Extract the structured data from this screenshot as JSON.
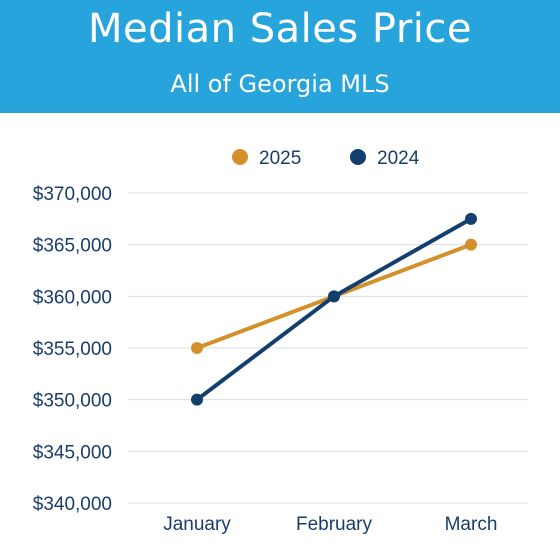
{
  "header": {
    "title": "Median Sales Price",
    "subtitle": "All of Georgia MLS"
  },
  "chart_data": {
    "type": "line",
    "title": "Median Sales Price",
    "subtitle": "All of Georgia MLS",
    "categories": [
      "January",
      "February",
      "March"
    ],
    "series": [
      {
        "name": "2025",
        "color": "#d4912b",
        "values": [
          355000,
          360000,
          365000
        ]
      },
      {
        "name": "2024",
        "color": "#123f6e",
        "values": [
          350000,
          360000,
          367500
        ]
      }
    ],
    "ylim": [
      340000,
      370000
    ],
    "yticks": [
      340000,
      345000,
      350000,
      355000,
      360000,
      365000,
      370000
    ],
    "ytick_labels": [
      "$340,000",
      "$345,000",
      "$350,000",
      "$355,000",
      "$360,000",
      "$365,000",
      "$370,000"
    ],
    "xlabel": "",
    "ylabel": "",
    "grid": true,
    "legend_position": "top-center"
  }
}
